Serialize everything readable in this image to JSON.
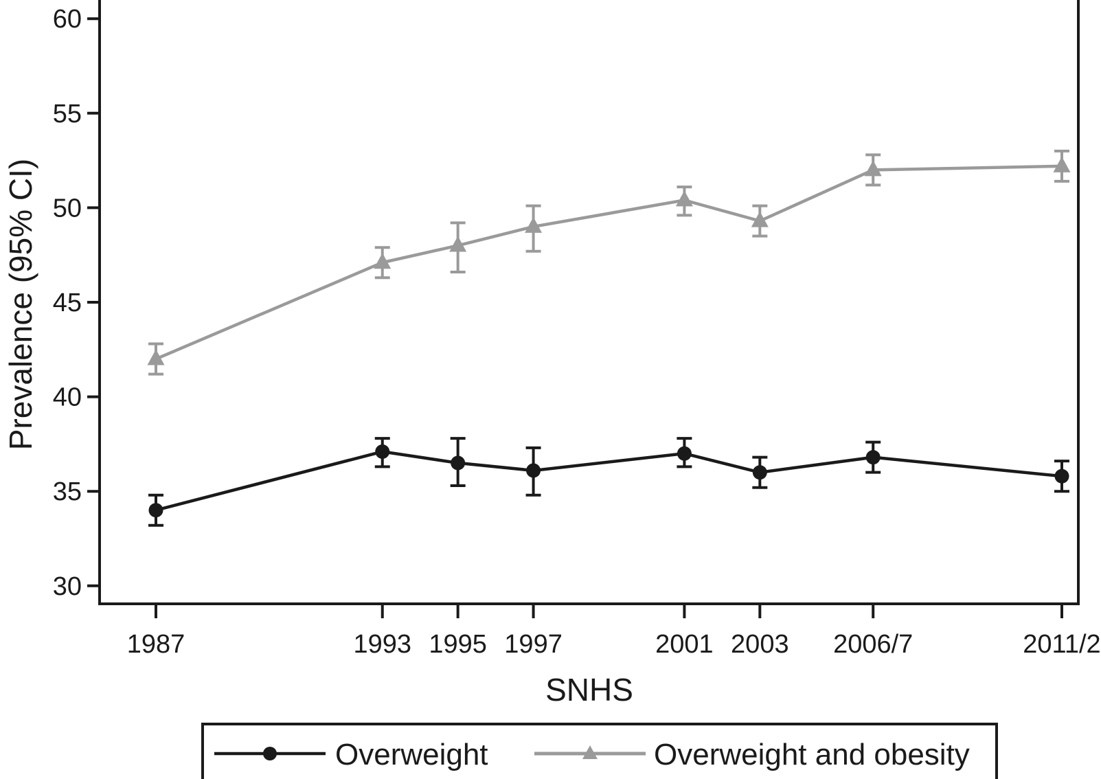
{
  "figure": {
    "background_color": "#ffffff",
    "frame_color": "#1a1a1a"
  },
  "chart_data": {
    "type": "line",
    "title": "",
    "xlabel": "SNHS",
    "ylabel": "Prevalence (95% CI)",
    "categories": [
      "1987",
      "1993",
      "1995",
      "1997",
      "2001",
      "2003",
      "2006/7",
      "2011/2"
    ],
    "x": [
      1987,
      1993,
      1995,
      1997,
      2001,
      2003,
      2006,
      2011
    ],
    "xlim": [
      1985.5,
      2011.5
    ],
    "ylim": [
      29,
      61
    ],
    "y_ticks": [
      30,
      35,
      40,
      45,
      50,
      55,
      60
    ],
    "grid": false,
    "error_bars": "95% CI",
    "legend_position": "bottom",
    "series": [
      {
        "name": "Overweight",
        "color": "#1a1a1a",
        "marker": "circle",
        "values": [
          34.0,
          37.1,
          36.5,
          36.1,
          37.0,
          36.0,
          36.8,
          35.8
        ],
        "ci_lower": [
          33.2,
          36.3,
          35.3,
          34.8,
          36.3,
          35.2,
          36.0,
          35.0
        ],
        "ci_upper": [
          34.8,
          37.8,
          37.8,
          37.3,
          37.8,
          36.8,
          37.6,
          36.6
        ]
      },
      {
        "name": "Overweight and obesity",
        "color": "#9a9a9a",
        "marker": "triangle",
        "values": [
          42.0,
          47.1,
          48.0,
          49.0,
          50.4,
          49.3,
          52.0,
          52.2
        ],
        "ci_lower": [
          41.2,
          46.3,
          46.6,
          47.7,
          49.6,
          48.5,
          51.2,
          51.4
        ],
        "ci_upper": [
          42.8,
          47.9,
          49.2,
          50.1,
          51.1,
          50.1,
          52.8,
          53.0
        ]
      }
    ]
  }
}
